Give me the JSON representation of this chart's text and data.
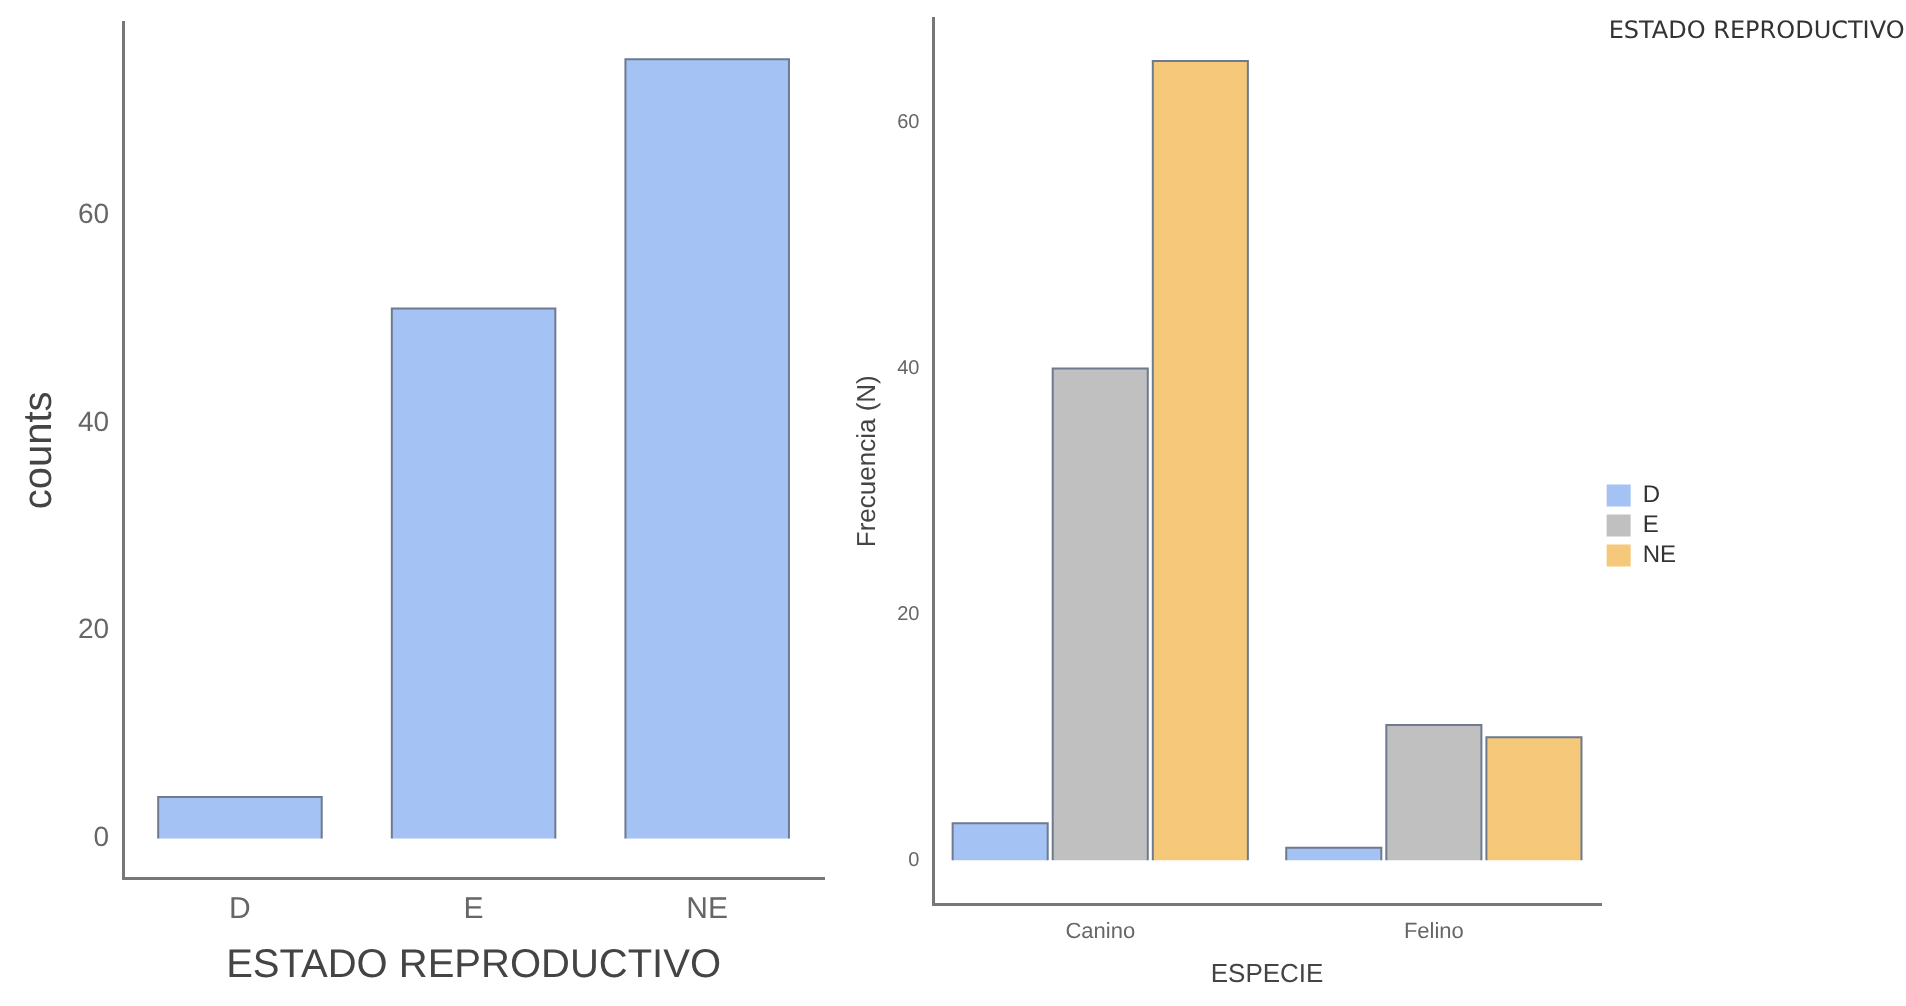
{
  "chart_data": [
    {
      "type": "bar",
      "xlabel": "ESTADO REPRODUCTIVO",
      "ylabel": "counts",
      "categories": [
        "D",
        "E",
        "NE"
      ],
      "values": [
        4,
        51,
        75
      ],
      "color": "#a4c2f4",
      "ylim": [
        -3.8,
        78.5
      ],
      "yticks": [
        0,
        20,
        40,
        60
      ],
      "grid": false,
      "legend": false
    },
    {
      "type": "bar",
      "xlabel": "ESPECIE",
      "ylabel": "Frecuencia (N)",
      "legend_title": "ESTADO REPRODUCTIVO",
      "categories": [
        "Canino",
        "Felino"
      ],
      "series": [
        {
          "name": "D",
          "color": "#a4c2f4",
          "values": [
            3,
            1
          ]
        },
        {
          "name": "E",
          "color": "#c0c0c0",
          "values": [
            40,
            11
          ]
        },
        {
          "name": "NE",
          "color": "#f5c87a",
          "values": [
            65,
            10
          ]
        }
      ],
      "ylim": [
        -3.6,
        68.5
      ],
      "yticks": [
        0,
        20,
        40,
        60
      ],
      "grid": false,
      "legend": "right"
    }
  ]
}
